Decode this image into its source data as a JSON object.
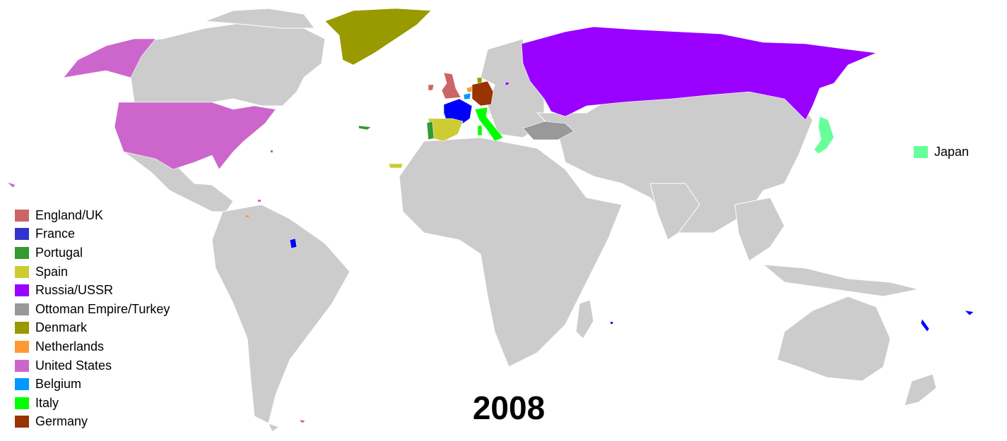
{
  "year": "2008",
  "legend": [
    {
      "label": "England/UK",
      "color": "#cc6666"
    },
    {
      "label": "France",
      "color": "#3333cc"
    },
    {
      "label": "Portugal",
      "color": "#339933"
    },
    {
      "label": "Spain",
      "color": "#cccc33"
    },
    {
      "label": "Russia/USSR",
      "color": "#9900ff"
    },
    {
      "label": "Ottoman Empire/Turkey",
      "color": "#999999"
    },
    {
      "label": "Denmark",
      "color": "#999900"
    },
    {
      "label": "Netherlands",
      "color": "#ff9933"
    },
    {
      "label": "United States",
      "color": "#cc66cc"
    },
    {
      "label": "Belgium",
      "color": "#0099ff"
    },
    {
      "label": "Italy",
      "color": "#00ff00"
    },
    {
      "label": "Germany",
      "color": "#993300"
    }
  ],
  "japan_key": {
    "label": "Japan",
    "color": "#66ff99"
  },
  "colors": {
    "land": "#cccccc",
    "border": "#ffffff",
    "france_map": "#0000ff",
    "ocean": "#ffffff"
  }
}
